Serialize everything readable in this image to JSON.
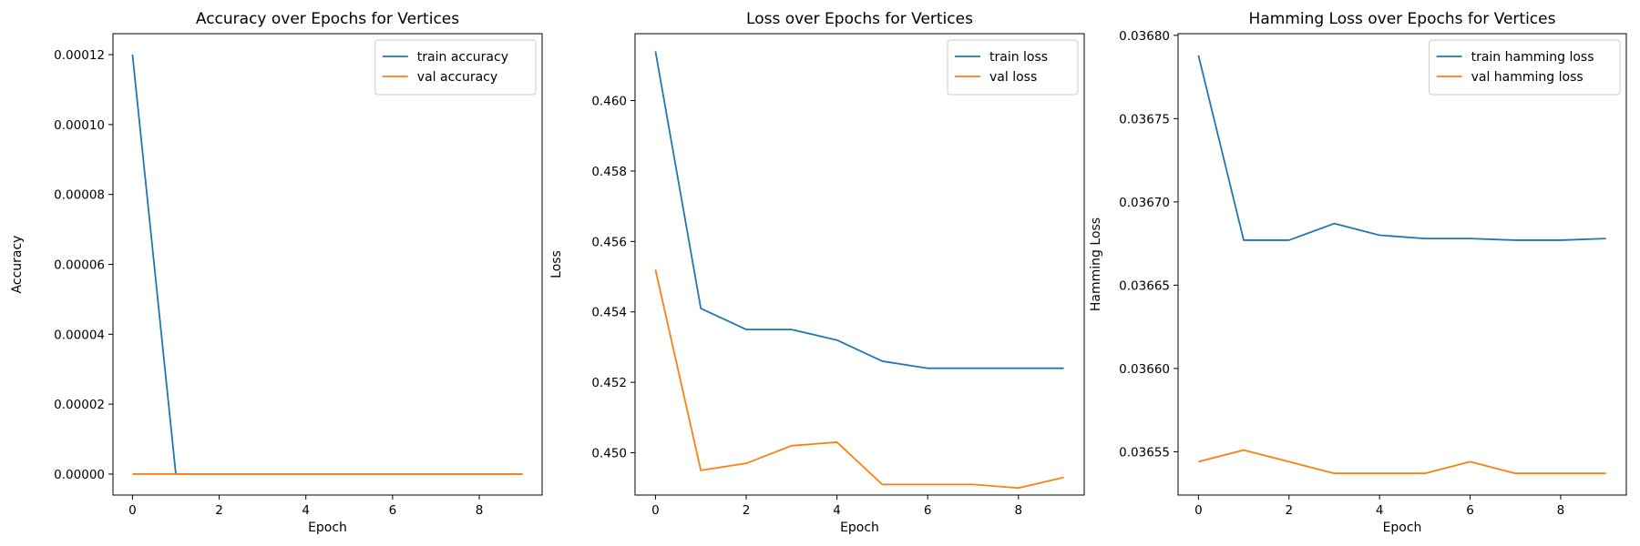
{
  "chart_data": [
    {
      "type": "line",
      "title": "Accuracy over Epochs for Vertices",
      "xlabel": "Epoch",
      "ylabel": "Accuracy",
      "xlim": [
        -0.45,
        9.45
      ],
      "ylim": [
        -6e-06,
        0.000126
      ],
      "xticks": [
        0,
        2,
        4,
        6,
        8
      ],
      "xtick_labels": [
        "0",
        "2",
        "4",
        "6",
        "8"
      ],
      "yticks": [
        0,
        2e-05,
        4e-05,
        6e-05,
        8e-05,
        0.0001,
        0.00012
      ],
      "ytick_labels": [
        "0.00000",
        "0.00002",
        "0.00004",
        "0.00006",
        "0.00008",
        "0.00010",
        "0.00012"
      ],
      "grid": false,
      "legend": "upper right",
      "x": [
        0,
        1,
        2,
        3,
        4,
        5,
        6,
        7,
        8,
        9
      ],
      "series": [
        {
          "name": "train accuracy",
          "color": "#1f77b4",
          "values": [
            0.00012,
            0,
            0,
            0,
            0,
            0,
            0,
            0,
            0,
            0
          ]
        },
        {
          "name": "val accuracy",
          "color": "#ff7f0e",
          "values": [
            0,
            0,
            0,
            0,
            0,
            0,
            0,
            0,
            0,
            0
          ]
        }
      ]
    },
    {
      "type": "line",
      "title": "Loss over Epochs for Vertices",
      "xlabel": "Epoch",
      "ylabel": "Loss",
      "xlim": [
        -0.45,
        9.45
      ],
      "ylim": [
        0.4488,
        0.4619
      ],
      "xticks": [
        0,
        2,
        4,
        6,
        8
      ],
      "xtick_labels": [
        "0",
        "2",
        "4",
        "6",
        "8"
      ],
      "yticks": [
        0.45,
        0.452,
        0.454,
        0.456,
        0.458,
        0.46
      ],
      "ytick_labels": [
        "0.450",
        "0.452",
        "0.454",
        "0.456",
        "0.458",
        "0.460"
      ],
      "grid": false,
      "legend": "upper right",
      "x": [
        0,
        1,
        2,
        3,
        4,
        5,
        6,
        7,
        8,
        9
      ],
      "series": [
        {
          "name": "train loss",
          "color": "#1f77b4",
          "values": [
            0.4614,
            0.4541,
            0.4535,
            0.4535,
            0.4532,
            0.4526,
            0.4524,
            0.4524,
            0.4524,
            0.4524
          ]
        },
        {
          "name": "val loss",
          "color": "#ff7f0e",
          "values": [
            0.4552,
            0.4495,
            0.4497,
            0.4502,
            0.4503,
            0.4491,
            0.4491,
            0.4491,
            0.449,
            0.4493
          ]
        }
      ]
    },
    {
      "type": "line",
      "title": "Hamming Loss over Epochs for Vertices",
      "xlabel": "Epoch",
      "ylabel": "Hamming Loss",
      "xlim": [
        -0.45,
        9.45
      ],
      "ylim": [
        0.036524,
        0.036801
      ],
      "xticks": [
        0,
        2,
        4,
        6,
        8
      ],
      "xtick_labels": [
        "0",
        "2",
        "4",
        "6",
        "8"
      ],
      "yticks": [
        0.03655,
        0.0366,
        0.03665,
        0.0367,
        0.03675,
        0.0368
      ],
      "ytick_labels": [
        "0.03655",
        "0.03660",
        "0.03665",
        "0.03670",
        "0.03675",
        "0.03680"
      ],
      "grid": false,
      "legend": "upper right",
      "x": [
        0,
        1,
        2,
        3,
        4,
        5,
        6,
        7,
        8,
        9
      ],
      "series": [
        {
          "name": "train hamming loss",
          "color": "#1f77b4",
          "values": [
            0.036788,
            0.036677,
            0.036677,
            0.036687,
            0.03668,
            0.036678,
            0.036678,
            0.036677,
            0.036677,
            0.036678
          ]
        },
        {
          "name": "val hamming loss",
          "color": "#ff7f0e",
          "values": [
            0.036544,
            0.036551,
            0.036544,
            0.036537,
            0.036537,
            0.036537,
            0.036544,
            0.036537,
            0.036537,
            0.036537
          ]
        }
      ]
    }
  ]
}
